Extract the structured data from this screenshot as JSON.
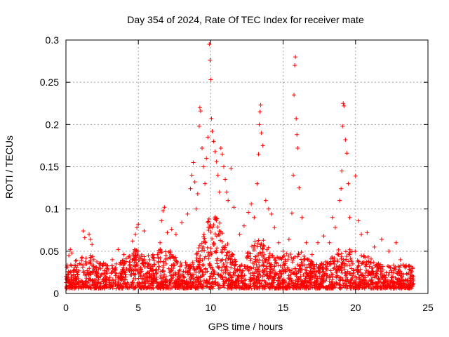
{
  "chart_data": {
    "type": "scatter",
    "title": "Day 354 of 2024, Rate Of TEC Index for receiver mate",
    "xlabel": "GPS time / hours",
    "ylabel": "ROTI / TECUs",
    "xlim": [
      0,
      25
    ],
    "ylim": [
      0,
      0.3
    ],
    "xticks": [
      0,
      5,
      10,
      15,
      20,
      25
    ],
    "yticks": [
      0,
      0.05,
      0.1,
      0.15,
      0.2,
      0.25,
      0.3
    ],
    "xtick_labels": [
      "0",
      "5",
      "10",
      "15",
      "20",
      "25"
    ],
    "ytick_labels": [
      "0",
      "0.05",
      "0.1",
      "0.15",
      "0.2",
      "0.25",
      "0.3"
    ],
    "grid": true,
    "marker": "+",
    "series_color": "#ff0000",
    "series": [
      {
        "name": "ROTI",
        "points": [
          [
            0.2,
            0.045
          ],
          [
            0.3,
            0.052
          ],
          [
            0.4,
            0.048
          ],
          [
            1.2,
            0.074
          ],
          [
            1.3,
            0.066
          ],
          [
            1.6,
            0.07
          ],
          [
            1.7,
            0.064
          ],
          [
            1.8,
            0.058
          ],
          [
            2.6,
            0.036
          ],
          [
            3.2,
            0.04
          ],
          [
            3.6,
            0.052
          ],
          [
            4.0,
            0.046
          ],
          [
            4.6,
            0.062
          ],
          [
            4.8,
            0.07
          ],
          [
            4.9,
            0.078
          ],
          [
            5.0,
            0.082
          ],
          [
            5.4,
            0.074
          ],
          [
            6.0,
            0.046
          ],
          [
            6.5,
            0.06
          ],
          [
            6.6,
            0.086
          ],
          [
            6.7,
            0.098
          ],
          [
            6.8,
            0.102
          ],
          [
            7.0,
            0.072
          ],
          [
            7.3,
            0.076
          ],
          [
            7.6,
            0.07
          ],
          [
            8.0,
            0.084
          ],
          [
            8.4,
            0.094
          ],
          [
            8.6,
            0.124
          ],
          [
            8.7,
            0.14
          ],
          [
            8.8,
            0.155
          ],
          [
            8.9,
            0.132
          ],
          [
            9.0,
            0.1
          ],
          [
            9.1,
            0.118
          ],
          [
            9.2,
            0.198
          ],
          [
            9.25,
            0.22
          ],
          [
            9.3,
            0.216
          ],
          [
            9.4,
            0.172
          ],
          [
            9.5,
            0.15
          ],
          [
            9.6,
            0.13
          ],
          [
            9.7,
            0.16
          ],
          [
            9.8,
            0.185
          ],
          [
            9.9,
            0.295
          ],
          [
            9.95,
            0.276
          ],
          [
            10.0,
            0.253
          ],
          [
            10.05,
            0.207
          ],
          [
            10.1,
            0.192
          ],
          [
            10.2,
            0.18
          ],
          [
            10.3,
            0.168
          ],
          [
            10.4,
            0.156
          ],
          [
            10.5,
            0.14
          ],
          [
            10.6,
            0.12
          ],
          [
            10.7,
            0.172
          ],
          [
            10.8,
            0.165
          ],
          [
            10.9,
            0.15
          ],
          [
            11.0,
            0.135
          ],
          [
            11.1,
            0.12
          ],
          [
            11.2,
            0.11
          ],
          [
            11.4,
            0.148
          ],
          [
            11.6,
            0.102
          ],
          [
            12.0,
            0.07
          ],
          [
            12.3,
            0.08
          ],
          [
            12.6,
            0.096
          ],
          [
            12.8,
            0.106
          ],
          [
            13.0,
            0.09
          ],
          [
            13.2,
            0.13
          ],
          [
            13.3,
            0.165
          ],
          [
            13.35,
            0.2
          ],
          [
            13.4,
            0.215
          ],
          [
            13.45,
            0.223
          ],
          [
            13.5,
            0.19
          ],
          [
            13.6,
            0.175
          ],
          [
            13.8,
            0.11
          ],
          [
            14.0,
            0.1
          ],
          [
            14.2,
            0.094
          ],
          [
            14.4,
            0.078
          ],
          [
            14.7,
            0.06
          ],
          [
            15.0,
            0.05
          ],
          [
            15.4,
            0.064
          ],
          [
            15.6,
            0.095
          ],
          [
            15.7,
            0.14
          ],
          [
            15.75,
            0.235
          ],
          [
            15.8,
            0.27
          ],
          [
            15.85,
            0.28
          ],
          [
            15.9,
            0.207
          ],
          [
            15.95,
            0.188
          ],
          [
            16.0,
            0.172
          ],
          [
            16.1,
            0.125
          ],
          [
            16.3,
            0.09
          ],
          [
            16.6,
            0.06
          ],
          [
            17.0,
            0.046
          ],
          [
            17.4,
            0.06
          ],
          [
            17.8,
            0.068
          ],
          [
            18.2,
            0.06
          ],
          [
            18.4,
            0.09
          ],
          [
            18.6,
            0.078
          ],
          [
            18.9,
            0.11
          ],
          [
            19.0,
            0.124
          ],
          [
            19.05,
            0.145
          ],
          [
            19.1,
            0.198
          ],
          [
            19.15,
            0.225
          ],
          [
            19.2,
            0.222
          ],
          [
            19.3,
            0.182
          ],
          [
            19.4,
            0.166
          ],
          [
            19.5,
            0.13
          ],
          [
            19.6,
            0.09
          ],
          [
            20.0,
            0.139
          ],
          [
            20.2,
            0.086
          ],
          [
            20.4,
            0.07
          ],
          [
            20.8,
            0.072
          ],
          [
            21.3,
            0.055
          ],
          [
            21.8,
            0.064
          ],
          [
            22.3,
            0.05
          ],
          [
            22.8,
            0.06
          ],
          [
            23.1,
            0.04
          ],
          [
            23.4,
            0.032
          ],
          [
            23.8,
            0.018
          ],
          [
            24.0,
            0.015
          ]
        ]
      }
    ]
  }
}
